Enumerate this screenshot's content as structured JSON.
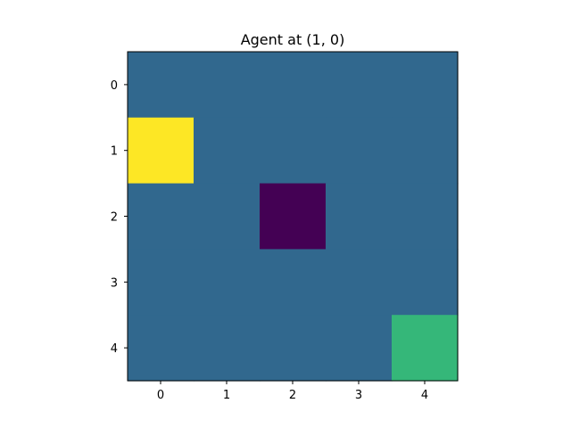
{
  "title": "Agent at (1, 0)",
  "colors": {
    "background_cell": "#31688e",
    "agent": "#fde725",
    "obstacle": "#440154",
    "goal": "#35b779",
    "axes": "#000000"
  },
  "chart_data": {
    "type": "heatmap",
    "title": "Agent at (1, 0)",
    "xlabel": "",
    "ylabel": "",
    "x_ticks": [
      "0",
      "1",
      "2",
      "3",
      "4"
    ],
    "y_ticks": [
      "0",
      "1",
      "2",
      "3",
      "4"
    ],
    "grid": false,
    "colormap": "viridis",
    "values": [
      [
        1,
        1,
        1,
        1,
        1
      ],
      [
        3,
        1,
        1,
        1,
        1
      ],
      [
        1,
        1,
        0,
        1,
        1
      ],
      [
        1,
        1,
        1,
        1,
        1
      ],
      [
        1,
        1,
        1,
        1,
        2
      ]
    ],
    "special_cells": [
      {
        "name": "agent",
        "row": 1,
        "col": 0,
        "color": "#fde725"
      },
      {
        "name": "obstacle",
        "row": 2,
        "col": 2,
        "color": "#440154"
      },
      {
        "name": "goal",
        "row": 4,
        "col": 4,
        "color": "#35b779"
      }
    ]
  }
}
